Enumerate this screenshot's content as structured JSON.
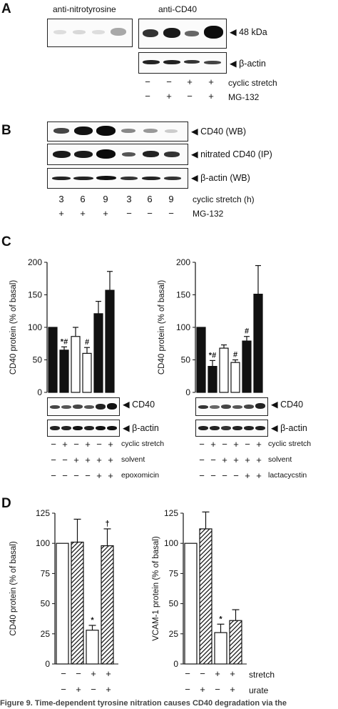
{
  "panelA": {
    "letter": "A",
    "title_left": "anti-nitrotyrosine",
    "title_right": "anti-CD40",
    "label_48": "48 kDa",
    "label_actin": "β-actin",
    "row1_label": "cyclic stretch",
    "row2_label": "MG-132",
    "row1": [
      "−",
      "−",
      "+",
      "+"
    ],
    "row2": [
      "−",
      "+",
      "−",
      "+"
    ]
  },
  "panelB": {
    "letter": "B",
    "label_cd40": "CD40 (WB)",
    "label_nitrated": "nitrated CD40 (IP)",
    "label_actin": "β-actin (WB)",
    "row1_label": "cyclic stretch (h)",
    "row2_label": "MG-132",
    "row1": [
      "3",
      "6",
      "9",
      "3",
      "6",
      "9"
    ],
    "row2": [
      "+",
      "+",
      "+",
      "−",
      "−",
      "−"
    ]
  },
  "panelC": {
    "letter": "C",
    "band_cd40": "CD40",
    "band_actin": "β-actin",
    "row_labels_left": [
      "cyclic stretch",
      "solvent",
      "epoxomicin"
    ],
    "row_labels_right": [
      "cyclic stretch",
      "solvent",
      "lactacycstin"
    ],
    "rows": [
      [
        "−",
        "+",
        "−",
        "+",
        "−",
        "+"
      ],
      [
        "−",
        "−",
        "+",
        "+",
        "+",
        "+"
      ],
      [
        "−",
        "−",
        "−",
        "−",
        "+",
        "+"
      ]
    ]
  },
  "panelD": {
    "letter": "D",
    "row1_label": "stretch",
    "row2_label": "urate",
    "row1": [
      "−",
      "−",
      "+",
      "+"
    ],
    "row2": [
      "−",
      "+",
      "−",
      "+"
    ]
  },
  "caption": "Figure 9. Time-dependent tyrosine nitration causes CD40 degradation via the",
  "chart_data": [
    {
      "type": "bar",
      "ylabel": "CD40 protein (% of basal)",
      "ylim": [
        0,
        200
      ],
      "yticks": [
        0,
        50,
        100,
        150,
        200
      ],
      "fills": [
        "black",
        "black",
        "white",
        "white",
        "black",
        "black"
      ],
      "values": [
        100,
        65,
        86,
        60,
        121,
        157
      ],
      "errors": [
        0,
        5,
        14,
        9,
        19,
        29
      ],
      "annotations": [
        "",
        "*#",
        "",
        "#",
        "",
        ""
      ]
    },
    {
      "type": "bar",
      "ylabel": "CD40 protein (% of basal)",
      "ylim": [
        0,
        200
      ],
      "yticks": [
        0,
        50,
        100,
        150,
        200
      ],
      "fills": [
        "black",
        "black",
        "white",
        "white",
        "black",
        "black"
      ],
      "values": [
        100,
        40,
        68,
        46,
        79,
        151
      ],
      "errors": [
        0,
        9,
        5,
        4,
        7,
        44
      ],
      "annotations": [
        "",
        "*#",
        "",
        "#",
        "#",
        ""
      ]
    },
    {
      "type": "bar",
      "ylabel": "CD40 protein (% of basal)",
      "ylim": [
        0,
        125
      ],
      "yticks": [
        0,
        25,
        50,
        75,
        100,
        125
      ],
      "fills": [
        "white",
        "hatch",
        "white",
        "hatch"
      ],
      "values": [
        100,
        101,
        28,
        98
      ],
      "errors": [
        0,
        19,
        4,
        14
      ],
      "annotations": [
        "",
        "",
        "*",
        "†"
      ]
    },
    {
      "type": "bar",
      "ylabel": "VCAM-1 protein (% of basal)",
      "ylim": [
        0,
        125
      ],
      "yticks": [
        0,
        25,
        50,
        75,
        100,
        125
      ],
      "fills": [
        "white",
        "hatch",
        "white",
        "hatch"
      ],
      "values": [
        100,
        112,
        26,
        36
      ],
      "errors": [
        0,
        14,
        7,
        9
      ],
      "annotations": [
        "",
        "",
        "*",
        ""
      ]
    }
  ]
}
